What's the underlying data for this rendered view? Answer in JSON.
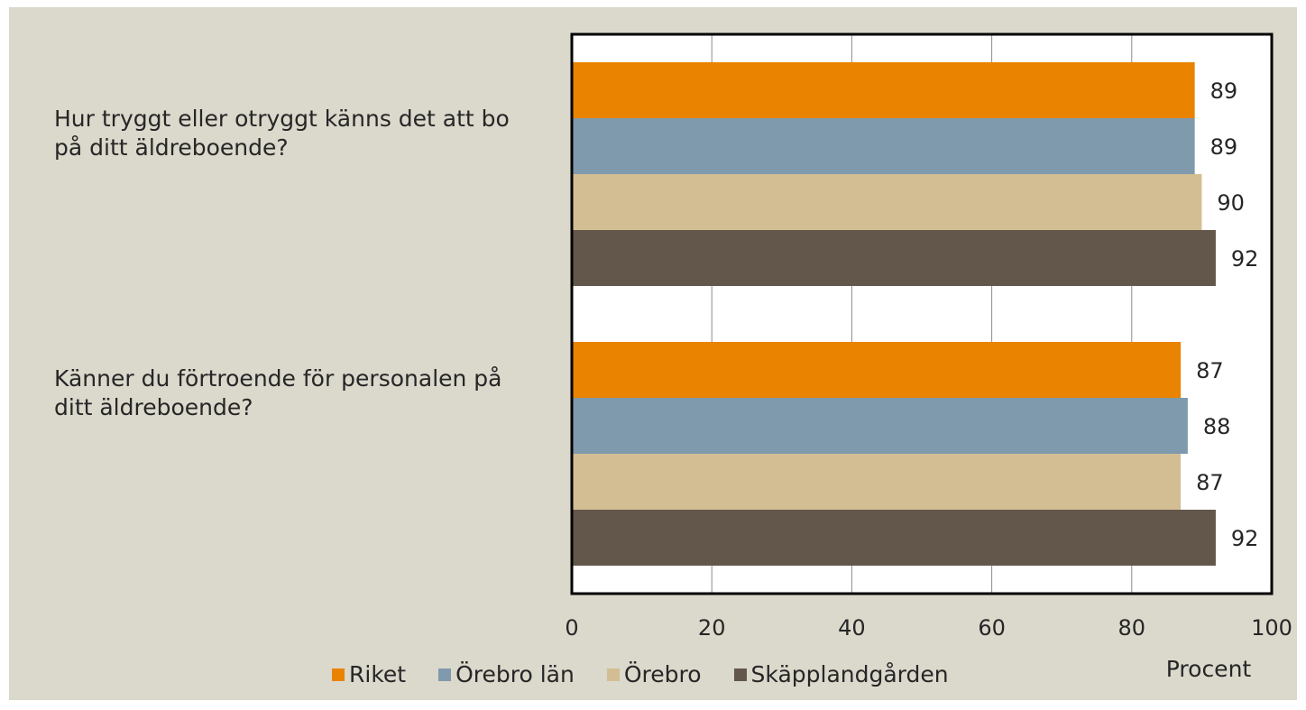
{
  "chart_data": {
    "type": "bar",
    "orientation": "horizontal",
    "categories": [
      "Hur tryggt eller otryggt känns det att bo på ditt äldreboende?",
      "Känner du förtroende för personalen på ditt äldreboende?"
    ],
    "series": [
      {
        "name": "Riket",
        "color": "#e98300",
        "values": [
          89,
          87
        ]
      },
      {
        "name": "Örebro län",
        "color": "#7f9aac",
        "values": [
          89,
          88
        ]
      },
      {
        "name": "Örebro",
        "color": "#d3be93",
        "values": [
          90,
          87
        ]
      },
      {
        "name": "Skäpplandgården",
        "color": "#63564b",
        "values": [
          92,
          92
        ]
      }
    ],
    "xlim": [
      0,
      100
    ],
    "xticks": [
      "0",
      "20",
      "40",
      "60",
      "80",
      "100"
    ],
    "xlabel": "Procent",
    "grid": true,
    "legend_position": "bottom"
  }
}
